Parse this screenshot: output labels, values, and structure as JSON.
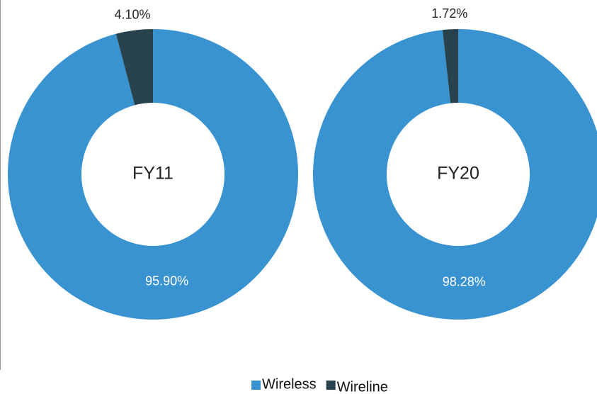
{
  "chart_data": [
    {
      "type": "pie",
      "title": "FY11",
      "categories": [
        "Wireless",
        "Wireline"
      ],
      "values": [
        95.9,
        4.1
      ],
      "value_labels": [
        "95.90%",
        "4.10%"
      ],
      "colors": [
        "#3a93d1",
        "#29434e"
      ]
    },
    {
      "type": "pie",
      "title": "FY20",
      "categories": [
        "Wireless",
        "Wireline"
      ],
      "values": [
        98.28,
        1.72
      ],
      "value_labels": [
        "98.28%",
        "1.72%"
      ],
      "colors": [
        "#3a93d1",
        "#29434e"
      ]
    }
  ]
}
